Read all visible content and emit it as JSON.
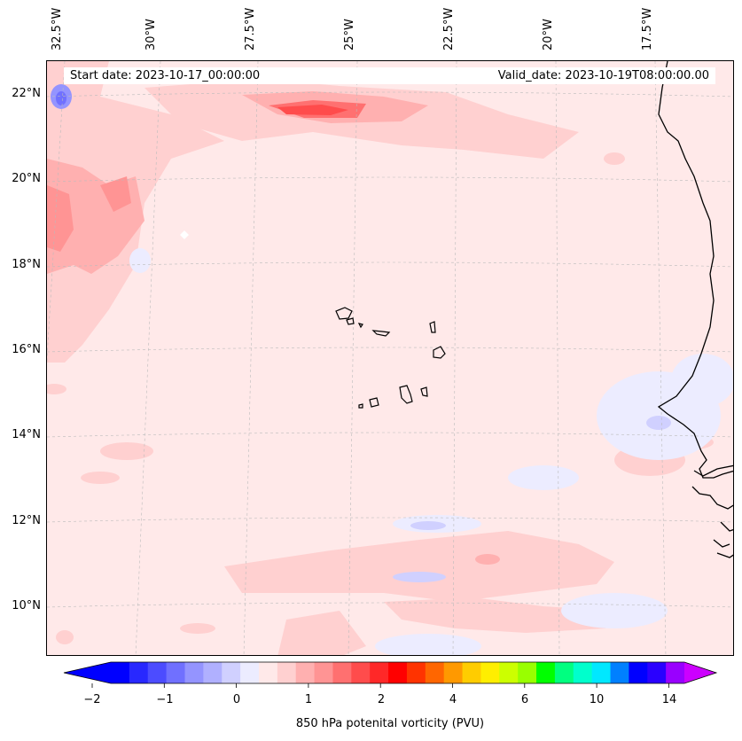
{
  "map": {
    "start_date": "Start date: 2023-10-17_00:00:00",
    "valid_date": "Valid_date: 2023-10-19T08:00:00.00",
    "background_color": "#ffe9e9",
    "coastline_color": "#000000",
    "gridline_color": "#bbbbbb",
    "lon_labels": [
      "32.5°W",
      "30°W",
      "27.5°W",
      "25°W",
      "22.5°W",
      "20°W",
      "17.5°W"
    ],
    "lat_labels": [
      "22°N",
      "20°N",
      "18°N",
      "16°N",
      "14°N",
      "12°N",
      "10°N"
    ],
    "regions": [
      "Cabo Verde islands",
      "West African coast"
    ]
  },
  "colorbar": {
    "title": "850 hPa potenital vorticity (PVU)",
    "tick_labels": [
      "−2",
      "−1",
      "0",
      "1",
      "2",
      "4",
      "6",
      "10",
      "14"
    ],
    "colors": [
      "#0000ff",
      "#2828ff",
      "#4c4cff",
      "#7070ff",
      "#9494ff",
      "#b0b0ff",
      "#d0d0ff",
      "#ececff",
      "#ffe9e9",
      "#ffd0d0",
      "#ffb0b0",
      "#ff9494",
      "#ff7070",
      "#ff4c4c",
      "#ff2828",
      "#ff0000",
      "#ff3300",
      "#ff6600",
      "#ff9900",
      "#ffcc00",
      "#ffee00",
      "#ccff00",
      "#99ff00",
      "#00ff00",
      "#00ff80",
      "#00ffcc",
      "#00e8ff",
      "#0080ff",
      "#0000ff",
      "#2a00ff",
      "#9900ff"
    ],
    "under_color": "#0000ff",
    "over_color": "#cc00ff"
  }
}
